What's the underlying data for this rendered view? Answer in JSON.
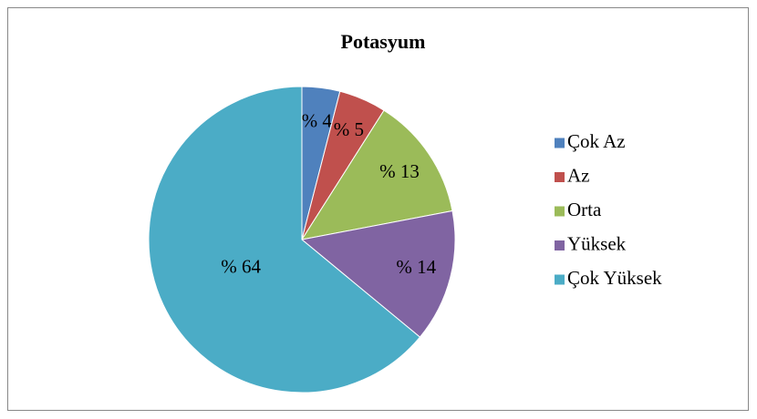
{
  "chart_data": {
    "type": "pie",
    "title": "Potasyum",
    "categories": [
      "Çok Az",
      "Az",
      "Orta",
      "Yüksek",
      "Çok Yüksek"
    ],
    "values": [
      4,
      5,
      13,
      14,
      64
    ],
    "value_labels": [
      "% 4",
      "% 5",
      "% 13",
      "% 14",
      "% 64"
    ],
    "colors": [
      "#4f81bd",
      "#c0504d",
      "#9bbb59",
      "#8064a2",
      "#4bacc6"
    ],
    "legend": "right"
  }
}
